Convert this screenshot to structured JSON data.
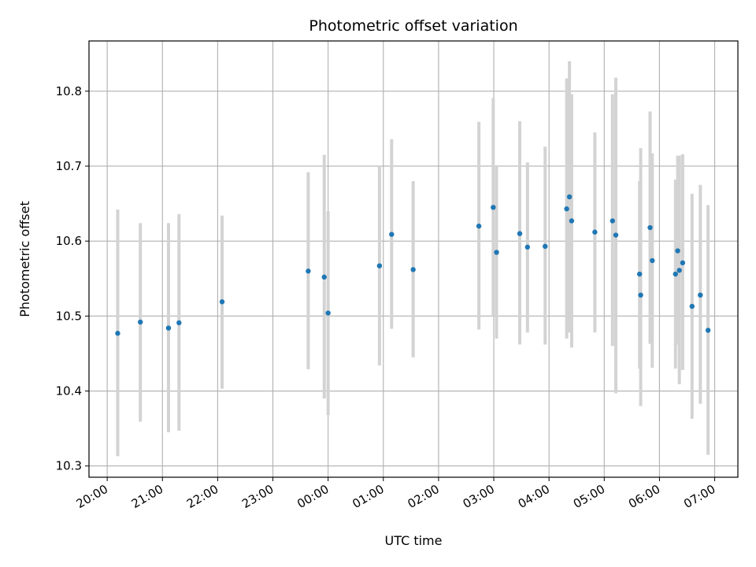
{
  "chart_data": {
    "type": "scatter",
    "title": "Photometric offset variation",
    "xlabel": "UTC time",
    "ylabel": "Photometric offset",
    "x_unit": "hours after 20:00 UTC",
    "xlim": [
      -0.33,
      11.42
    ],
    "ylim": [
      10.285,
      10.867
    ],
    "grid": true,
    "x_ticks": [
      {
        "value": 0,
        "label": "20:00"
      },
      {
        "value": 1,
        "label": "21:00"
      },
      {
        "value": 2,
        "label": "22:00"
      },
      {
        "value": 3,
        "label": "23:00"
      },
      {
        "value": 4,
        "label": "00:00"
      },
      {
        "value": 5,
        "label": "01:00"
      },
      {
        "value": 6,
        "label": "02:00"
      },
      {
        "value": 7,
        "label": "03:00"
      },
      {
        "value": 8,
        "label": "04:00"
      },
      {
        "value": 9,
        "label": "05:00"
      },
      {
        "value": 10,
        "label": "06:00"
      },
      {
        "value": 11,
        "label": "07:00"
      }
    ],
    "y_ticks": [
      {
        "value": 10.3,
        "label": "10.3"
      },
      {
        "value": 10.4,
        "label": "10.4"
      },
      {
        "value": 10.5,
        "label": "10.5"
      },
      {
        "value": 10.6,
        "label": "10.6"
      },
      {
        "value": 10.7,
        "label": "10.7"
      },
      {
        "value": 10.8,
        "label": "10.8"
      }
    ],
    "colors": {
      "points": "#1f77b4",
      "errorbars": "#d3d3d3",
      "grid": "#b0b0b0"
    },
    "series": [
      {
        "points": [
          {
            "x": 0.19,
            "y": 10.477,
            "ylow": 10.313,
            "yhigh": 10.642
          },
          {
            "x": 0.6,
            "y": 10.492,
            "ylow": 10.359,
            "yhigh": 10.624
          },
          {
            "x": 1.11,
            "y": 10.484,
            "ylow": 10.345,
            "yhigh": 10.624
          },
          {
            "x": 1.3,
            "y": 10.491,
            "ylow": 10.347,
            "yhigh": 10.636
          },
          {
            "x": 2.08,
            "y": 10.519,
            "ylow": 10.403,
            "yhigh": 10.634
          },
          {
            "x": 3.64,
            "y": 10.56,
            "ylow": 10.429,
            "yhigh": 10.692
          },
          {
            "x": 3.93,
            "y": 10.552,
            "ylow": 10.39,
            "yhigh": 10.715
          },
          {
            "x": 4.0,
            "y": 10.504,
            "ylow": 10.368,
            "yhigh": 10.64
          },
          {
            "x": 4.93,
            "y": 10.567,
            "ylow": 10.434,
            "yhigh": 10.701
          },
          {
            "x": 5.15,
            "y": 10.609,
            "ylow": 10.483,
            "yhigh": 10.736
          },
          {
            "x": 5.54,
            "y": 10.562,
            "ylow": 10.445,
            "yhigh": 10.68
          },
          {
            "x": 6.73,
            "y": 10.62,
            "ylow": 10.482,
            "yhigh": 10.759
          },
          {
            "x": 6.99,
            "y": 10.645,
            "ylow": 10.5,
            "yhigh": 10.791
          },
          {
            "x": 7.05,
            "y": 10.585,
            "ylow": 10.47,
            "yhigh": 10.7
          },
          {
            "x": 7.47,
            "y": 10.61,
            "ylow": 10.462,
            "yhigh": 10.76
          },
          {
            "x": 7.61,
            "y": 10.592,
            "ylow": 10.478,
            "yhigh": 10.705
          },
          {
            "x": 7.93,
            "y": 10.593,
            "ylow": 10.462,
            "yhigh": 10.726
          },
          {
            "x": 8.32,
            "y": 10.643,
            "ylow": 10.47,
            "yhigh": 10.817
          },
          {
            "x": 8.37,
            "y": 10.659,
            "ylow": 10.478,
            "yhigh": 10.84
          },
          {
            "x": 8.41,
            "y": 10.627,
            "ylow": 10.458,
            "yhigh": 10.796
          },
          {
            "x": 8.83,
            "y": 10.612,
            "ylow": 10.478,
            "yhigh": 10.745
          },
          {
            "x": 9.15,
            "y": 10.627,
            "ylow": 10.46,
            "yhigh": 10.796
          },
          {
            "x": 9.21,
            "y": 10.608,
            "ylow": 10.397,
            "yhigh": 10.818
          },
          {
            "x": 9.64,
            "y": 10.556,
            "ylow": 10.43,
            "yhigh": 10.68
          },
          {
            "x": 9.66,
            "y": 10.528,
            "ylow": 10.38,
            "yhigh": 10.724
          },
          {
            "x": 9.83,
            "y": 10.618,
            "ylow": 10.463,
            "yhigh": 10.773
          },
          {
            "x": 9.87,
            "y": 10.574,
            "ylow": 10.431,
            "yhigh": 10.717
          },
          {
            "x": 10.29,
            "y": 10.556,
            "ylow": 10.43,
            "yhigh": 10.682
          },
          {
            "x": 10.33,
            "y": 10.587,
            "ylow": 10.462,
            "yhigh": 10.714
          },
          {
            "x": 10.36,
            "y": 10.561,
            "ylow": 10.409,
            "yhigh": 10.714
          },
          {
            "x": 10.42,
            "y": 10.571,
            "ylow": 10.428,
            "yhigh": 10.716
          },
          {
            "x": 10.59,
            "y": 10.513,
            "ylow": 10.363,
            "yhigh": 10.663
          },
          {
            "x": 10.74,
            "y": 10.528,
            "ylow": 10.383,
            "yhigh": 10.675
          },
          {
            "x": 10.88,
            "y": 10.481,
            "ylow": 10.315,
            "yhigh": 10.648
          }
        ]
      }
    ]
  }
}
